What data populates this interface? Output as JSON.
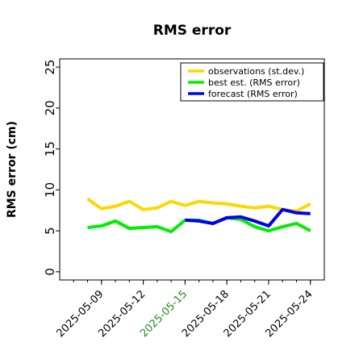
{
  "chart_data": {
    "type": "line",
    "title": "RMS error",
    "ylabel": "RMS error (cm)",
    "xlabel": "",
    "ylim": [
      -1,
      26
    ],
    "yticks": [
      0,
      5,
      10,
      15,
      20,
      25
    ],
    "x_range": [
      "2025-05-06",
      "2025-05-25"
    ],
    "xticks": [
      "2025-05-09",
      "2025-05-12",
      "2025-05-15",
      "2025-05-18",
      "2025-05-21",
      "2025-05-24"
    ],
    "highlight_tick": "2025-05-15",
    "highlight_color": "#228B22",
    "legend_position": "top-right",
    "grid": false,
    "series": [
      {
        "name": "observations (st.dev.)",
        "color": "#FFD700",
        "x": [
          "2025-05-08",
          "2025-05-09",
          "2025-05-10",
          "2025-05-11",
          "2025-05-12",
          "2025-05-13",
          "2025-05-14",
          "2025-05-15",
          "2025-05-16",
          "2025-05-17",
          "2025-05-18",
          "2025-05-19",
          "2025-05-20",
          "2025-05-21",
          "2025-05-22",
          "2025-05-23",
          "2025-05-24"
        ],
        "values": [
          8.9,
          7.7,
          8.0,
          8.6,
          7.6,
          7.8,
          8.6,
          8.1,
          8.6,
          8.4,
          8.3,
          8.0,
          7.8,
          8.0,
          7.6,
          7.4,
          8.3
        ]
      },
      {
        "name": "best est. (RMS error)",
        "color": "#00EE00",
        "x": [
          "2025-05-08",
          "2025-05-09",
          "2025-05-10",
          "2025-05-11",
          "2025-05-12",
          "2025-05-13",
          "2025-05-14",
          "2025-05-15",
          "2025-05-16",
          "2025-05-17",
          "2025-05-18",
          "2025-05-19",
          "2025-05-20",
          "2025-05-21",
          "2025-05-22",
          "2025-05-23",
          "2025-05-24"
        ],
        "values": [
          5.4,
          5.6,
          6.2,
          5.3,
          5.4,
          5.5,
          4.9,
          6.3,
          6.3,
          5.9,
          6.6,
          6.4,
          5.5,
          5.0,
          5.5,
          5.9,
          5.0
        ]
      },
      {
        "name": "forecast (RMS error)",
        "color": "#0000EE",
        "x": [
          "2025-05-15",
          "2025-05-16",
          "2025-05-17",
          "2025-05-18",
          "2025-05-19",
          "2025-05-20",
          "2025-05-21",
          "2025-05-22",
          "2025-05-23",
          "2025-05-24"
        ],
        "values": [
          6.3,
          6.2,
          5.9,
          6.6,
          6.7,
          6.2,
          5.6,
          7.6,
          7.2,
          7.1
        ]
      }
    ]
  }
}
